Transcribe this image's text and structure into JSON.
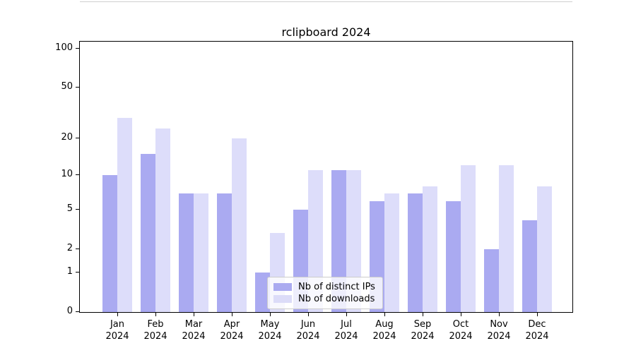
{
  "chart_data": {
    "type": "bar",
    "title": "rclipboard 2024",
    "categories": [
      "Jan",
      "Feb",
      "Mar",
      "Apr",
      "May",
      "Jun",
      "Jul",
      "Aug",
      "Sep",
      "Oct",
      "Nov",
      "Dec"
    ],
    "category_year": "2024",
    "series": [
      {
        "name": "Nb of distinct IPs",
        "color": "rgba(100,100,230,0.55)",
        "swatch": "#aaaaf0",
        "values": [
          10,
          15,
          7,
          7,
          1,
          5,
          11,
          6,
          7,
          6,
          2,
          4
        ]
      },
      {
        "name": "Nb of downloads",
        "color": "rgba(100,100,230,0.22)",
        "swatch": "#dcdcf8",
        "values": [
          29,
          24,
          7,
          20,
          3,
          11,
          11,
          7,
          8,
          12,
          12,
          8
        ]
      }
    ],
    "xlabel": "",
    "ylabel": "",
    "yscale": "log1p",
    "ylim": [
      0,
      115
    ],
    "yticks": [
      100,
      50,
      20,
      10,
      5,
      2,
      1,
      0
    ],
    "minor_gridline_values": [
      3,
      4,
      6,
      7,
      8,
      9,
      30,
      40,
      60,
      70,
      80,
      90
    ],
    "grid": "on",
    "legend_position": "lower center"
  }
}
